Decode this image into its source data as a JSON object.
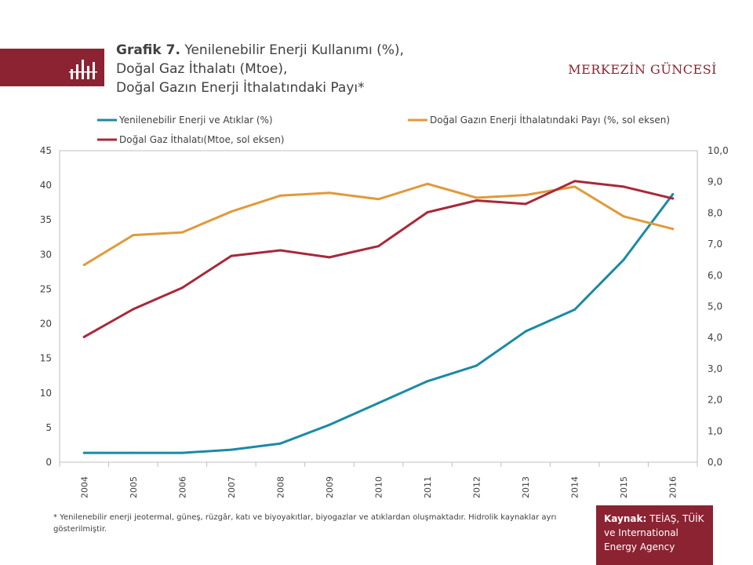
{
  "header": {
    "title_prefix": "Grafik 7.",
    "title_line1": "Yenilenebilir Enerji Kullanımı (%),",
    "title_line2": "Doğal Gaz İthalatı (Mtoe),",
    "title_line3": "Doğal Gazın Enerji İthalatındaki Payı*",
    "brand": "MERKEZİN GÜNCESİ",
    "brand_icon": "bar-chart-icon"
  },
  "colors": {
    "brand": "#8b2332",
    "renewable": "#1a8aa6",
    "gas_share": "#e09a3a",
    "gas_import": "#a8283a"
  },
  "chart_data": {
    "type": "line",
    "x": [
      "2004",
      "2005",
      "2006",
      "2007",
      "2008",
      "2009",
      "2010",
      "2011",
      "2012",
      "2013",
      "2014",
      "2015",
      "2016"
    ],
    "left_axis": {
      "min": 0,
      "max": 45,
      "ticks": [
        "0",
        "5",
        "10",
        "15",
        "20",
        "25",
        "30",
        "35",
        "40",
        "45"
      ]
    },
    "right_axis": {
      "min": 0,
      "max": 10,
      "ticks": [
        "0,0",
        "1,0",
        "2,0",
        "3,0",
        "4,0",
        "5,0",
        "6,0",
        "7,0",
        "8,0",
        "9,0",
        "10,0"
      ]
    },
    "grid": false,
    "legend_position": "top",
    "series": [
      {
        "name": "Yenilenebilir Enerji ve Atıklar (%)",
        "color_key": "renewable",
        "axis": "right",
        "values": [
          0.3,
          0.3,
          0.3,
          0.4,
          0.6,
          1.2,
          1.9,
          2.6,
          3.1,
          4.2,
          4.9,
          6.5,
          8.6
        ]
      },
      {
        "name": "Doğal Gazın Enerji İthalatındaki Payı (%, sol eksen)",
        "color_key": "gas_share",
        "axis": "left",
        "values": [
          28.5,
          32.8,
          33.2,
          36.2,
          38.5,
          38.9,
          38.0,
          40.2,
          38.2,
          38.6,
          39.8,
          35.5,
          33.7
        ]
      },
      {
        "name": "Doğal Gaz İthalatı(Mtoe, sol eksen)",
        "color_key": "gas_import",
        "axis": "left",
        "values": [
          18.1,
          22.1,
          25.2,
          29.8,
          30.6,
          29.6,
          31.2,
          36.1,
          37.8,
          37.3,
          40.6,
          39.8,
          38.1
        ]
      }
    ]
  },
  "footnote": "* Yenilenebilir enerji jeotermal, güneş, rüzgâr, katı ve biyoyakıtlar, biyogazlar ve atıklardan oluşmaktadır. Hidrolik kaynaklar ayrı gösterilmiştir.",
  "source": {
    "label": "Kaynak:",
    "text": "TEİAŞ, TÜİK ve International Energy Agency"
  }
}
